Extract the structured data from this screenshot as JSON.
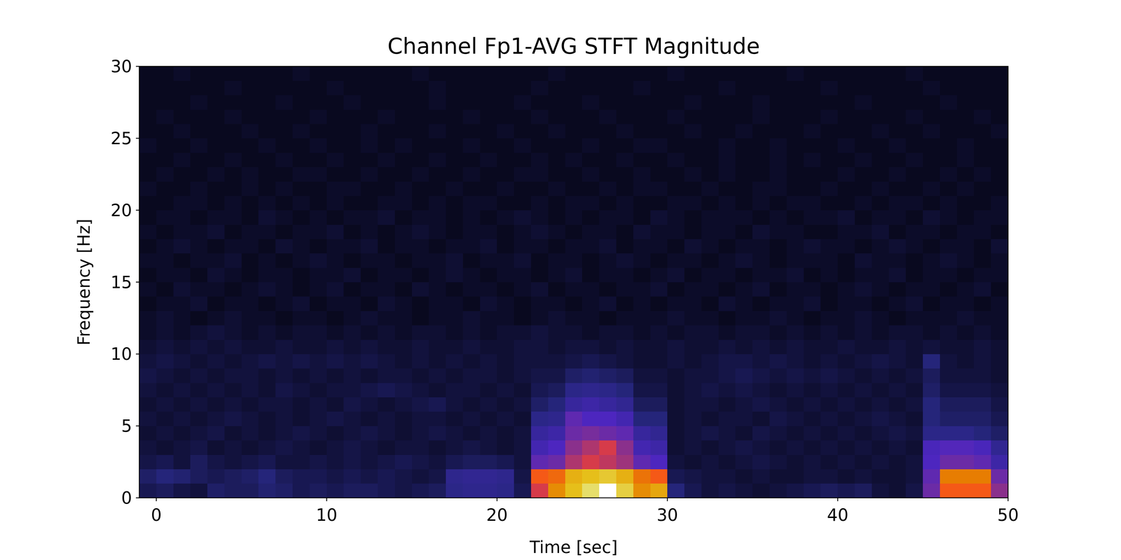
{
  "chart_data": {
    "type": "heatmap",
    "title": "Channel Fp1-AVG STFT Magnitude",
    "x_label": "Time [sec]",
    "y_label": "Frequency [Hz]",
    "xlim": [
      -1,
      50
    ],
    "ylim": [
      0,
      30
    ],
    "xticks": [
      0,
      10,
      20,
      30,
      40,
      50
    ],
    "yticks": [
      0,
      5,
      10,
      15,
      20,
      25,
      30
    ],
    "zlim": [
      0,
      100
    ],
    "x_edges": [
      -1,
      0,
      1,
      2,
      3,
      4,
      5,
      6,
      7,
      8,
      9,
      10,
      11,
      12,
      13,
      14,
      15,
      16,
      17,
      18,
      19,
      20,
      21,
      22,
      23,
      24,
      25,
      26,
      27,
      28,
      29,
      30,
      31,
      32,
      33,
      34,
      35,
      36,
      37,
      38,
      39,
      40,
      41,
      42,
      43,
      44,
      45,
      46,
      47,
      48,
      49,
      50
    ],
    "y_edges": [
      0,
      1,
      2,
      3,
      4,
      5,
      6,
      7,
      8,
      9,
      10,
      11,
      12,
      13,
      14,
      15,
      16,
      17,
      18,
      19,
      20,
      21,
      22,
      23,
      24,
      25,
      26,
      27,
      28,
      29,
      30
    ],
    "cells": [
      [
        8,
        9,
        7,
        6,
        10,
        9,
        9,
        11,
        10,
        8,
        9,
        8,
        9,
        9,
        8,
        7,
        8,
        9,
        14,
        15,
        15,
        14,
        8,
        45,
        65,
        75,
        85,
        100,
        80,
        65,
        70,
        12,
        8,
        6,
        7,
        6,
        5,
        6,
        7,
        8,
        9,
        8,
        9,
        6,
        5,
        7,
        30,
        55,
        55,
        55,
        35
      ],
      [
        10,
        12,
        11,
        9,
        8,
        9,
        10,
        12,
        9,
        8,
        8,
        7,
        8,
        7,
        8,
        7,
        6,
        7,
        15,
        16,
        16,
        15,
        7,
        55,
        58,
        72,
        75,
        78,
        72,
        60,
        55,
        8,
        7,
        6,
        6,
        5,
        6,
        5,
        5,
        6,
        6,
        5,
        6,
        5,
        5,
        6,
        28,
        62,
        62,
        62,
        30
      ],
      [
        7,
        8,
        6,
        9,
        7,
        6,
        7,
        8,
        6,
        6,
        7,
        6,
        7,
        6,
        7,
        8,
        7,
        6,
        8,
        9,
        9,
        8,
        6,
        28,
        30,
        40,
        45,
        42,
        38,
        28,
        25,
        6,
        5,
        6,
        5,
        6,
        7,
        6,
        5,
        6,
        5,
        6,
        5,
        6,
        5,
        6,
        25,
        30,
        30,
        28,
        20
      ],
      [
        6,
        5,
        6,
        7,
        5,
        6,
        5,
        6,
        7,
        6,
        5,
        6,
        7,
        6,
        5,
        6,
        6,
        5,
        6,
        7,
        6,
        5,
        6,
        22,
        25,
        35,
        40,
        45,
        35,
        22,
        20,
        5,
        6,
        5,
        6,
        7,
        6,
        5,
        6,
        5,
        6,
        5,
        6,
        5,
        6,
        5,
        24,
        26,
        26,
        24,
        16
      ],
      [
        5,
        6,
        5,
        6,
        7,
        5,
        6,
        5,
        6,
        7,
        6,
        5,
        6,
        7,
        6,
        5,
        6,
        7,
        6,
        5,
        6,
        5,
        6,
        18,
        20,
        30,
        32,
        30,
        28,
        18,
        16,
        5,
        6,
        7,
        6,
        5,
        7,
        6,
        5,
        6,
        5,
        6,
        5,
        6,
        7,
        6,
        14,
        14,
        14,
        12,
        10
      ],
      [
        6,
        5,
        6,
        5,
        6,
        7,
        6,
        5,
        6,
        5,
        6,
        7,
        6,
        5,
        6,
        5,
        6,
        6,
        5,
        6,
        5,
        6,
        5,
        14,
        15,
        28,
        25,
        25,
        22,
        12,
        12,
        5,
        6,
        5,
        6,
        6,
        5,
        7,
        6,
        5,
        6,
        5,
        6,
        7,
        6,
        5,
        12,
        10,
        10,
        10,
        8
      ],
      [
        5,
        6,
        5,
        6,
        5,
        6,
        5,
        6,
        6,
        5,
        6,
        5,
        7,
        6,
        5,
        6,
        7,
        8,
        6,
        5,
        6,
        5,
        6,
        10,
        12,
        18,
        20,
        18,
        16,
        9,
        9,
        5,
        6,
        6,
        5,
        6,
        7,
        6,
        5,
        6,
        5,
        6,
        5,
        6,
        5,
        6,
        12,
        9,
        9,
        9,
        7
      ],
      [
        6,
        5,
        6,
        5,
        6,
        5,
        6,
        5,
        7,
        6,
        5,
        6,
        6,
        7,
        8,
        7,
        6,
        5,
        6,
        6,
        5,
        6,
        5,
        8,
        9,
        14,
        15,
        14,
        12,
        7,
        7,
        5,
        6,
        7,
        6,
        7,
        6,
        5,
        6,
        5,
        6,
        5,
        6,
        5,
        6,
        5,
        10,
        7,
        7,
        7,
        6
      ],
      [
        7,
        6,
        5,
        6,
        5,
        6,
        6,
        5,
        6,
        5,
        6,
        5,
        6,
        5,
        6,
        6,
        5,
        6,
        5,
        6,
        6,
        5,
        6,
        7,
        7,
        10,
        11,
        10,
        9,
        6,
        6,
        5,
        6,
        6,
        7,
        8,
        7,
        6,
        7,
        6,
        7,
        6,
        5,
        6,
        5,
        6,
        9,
        6,
        6,
        6,
        5
      ],
      [
        6,
        7,
        6,
        5,
        6,
        5,
        6,
        7,
        6,
        7,
        6,
        7,
        6,
        7,
        6,
        5,
        6,
        5,
        6,
        5,
        6,
        5,
        6,
        6,
        6,
        7,
        8,
        7,
        6,
        5,
        5,
        6,
        5,
        6,
        7,
        7,
        6,
        7,
        6,
        5,
        6,
        5,
        6,
        7,
        6,
        5,
        12,
        6,
        5,
        6,
        5
      ],
      [
        5,
        6,
        5,
        6,
        5,
        6,
        5,
        5,
        6,
        5,
        5,
        6,
        5,
        6,
        5,
        5,
        6,
        5,
        5,
        6,
        5,
        5,
        6,
        6,
        5,
        6,
        6,
        5,
        6,
        5,
        5,
        6,
        5,
        5,
        6,
        5,
        6,
        5,
        6,
        5,
        5,
        6,
        5,
        5,
        6,
        5,
        6,
        5,
        5,
        6,
        5
      ],
      [
        4,
        5,
        4,
        5,
        6,
        5,
        4,
        5,
        4,
        5,
        5,
        4,
        5,
        4,
        5,
        4,
        5,
        5,
        4,
        5,
        4,
        5,
        5,
        6,
        5,
        5,
        4,
        5,
        5,
        4,
        5,
        4,
        5,
        5,
        4,
        5,
        5,
        4,
        5,
        4,
        5,
        4,
        5,
        4,
        5,
        5,
        4,
        5,
        4,
        5,
        4
      ],
      [
        4,
        5,
        4,
        3,
        4,
        5,
        4,
        4,
        3,
        4,
        4,
        3,
        4,
        5,
        4,
        4,
        3,
        4,
        4,
        5,
        4,
        4,
        3,
        4,
        5,
        4,
        4,
        3,
        4,
        4,
        4,
        5,
        4,
        4,
        3,
        4,
        4,
        5,
        4,
        3,
        4,
        4,
        5,
        4,
        3,
        4,
        4,
        4,
        5,
        4,
        4
      ],
      [
        3,
        4,
        4,
        5,
        3,
        4,
        4,
        3,
        4,
        5,
        3,
        4,
        4,
        3,
        5,
        4,
        3,
        4,
        4,
        3,
        5,
        4,
        3,
        4,
        4,
        3,
        4,
        5,
        3,
        4,
        3,
        4,
        4,
        3,
        5,
        4,
        3,
        4,
        4,
        5,
        3,
        4,
        4,
        3,
        4,
        5,
        3,
        4,
        4,
        3,
        4
      ],
      [
        4,
        3,
        5,
        4,
        4,
        3,
        4,
        5,
        4,
        3,
        4,
        5,
        3,
        4,
        4,
        3,
        5,
        4,
        3,
        4,
        4,
        3,
        4,
        5,
        3,
        4,
        4,
        3,
        4,
        4,
        5,
        3,
        4,
        4,
        3,
        4,
        5,
        3,
        4,
        4,
        3,
        4,
        5,
        4,
        3,
        4,
        4,
        3,
        4,
        5,
        3
      ],
      [
        3,
        4,
        4,
        3,
        5,
        4,
        3,
        4,
        4,
        3,
        4,
        4,
        5,
        3,
        4,
        4,
        3,
        4,
        5,
        4,
        3,
        4,
        4,
        3,
        4,
        5,
        3,
        4,
        4,
        3,
        4,
        5,
        3,
        4,
        4,
        3,
        4,
        4,
        5,
        3,
        4,
        3,
        4,
        4,
        5,
        3,
        4,
        4,
        3,
        4,
        4
      ],
      [
        4,
        4,
        3,
        4,
        4,
        5,
        3,
        4,
        3,
        4,
        5,
        4,
        3,
        4,
        4,
        3,
        4,
        4,
        5,
        3,
        4,
        4,
        5,
        3,
        4,
        4,
        3,
        4,
        5,
        4,
        3,
        4,
        4,
        3,
        4,
        5,
        4,
        3,
        4,
        4,
        4,
        3,
        5,
        4,
        4,
        3,
        4,
        5,
        4,
        3,
        4
      ],
      [
        3,
        4,
        5,
        4,
        3,
        4,
        4,
        3,
        5,
        4,
        3,
        4,
        4,
        5,
        3,
        4,
        4,
        3,
        4,
        4,
        5,
        3,
        4,
        4,
        3,
        4,
        4,
        5,
        3,
        4,
        4,
        3,
        5,
        4,
        3,
        4,
        4,
        3,
        4,
        5,
        4,
        4,
        3,
        4,
        5,
        4,
        3,
        4,
        4,
        3,
        5
      ],
      [
        4,
        3,
        4,
        4,
        5,
        3,
        4,
        4,
        3,
        4,
        4,
        5,
        3,
        4,
        3,
        4,
        5,
        4,
        3,
        4,
        4,
        3,
        4,
        5,
        4,
        3,
        4,
        4,
        3,
        5,
        4,
        4,
        3,
        4,
        4,
        3,
        5,
        4,
        4,
        3,
        3,
        4,
        4,
        5,
        3,
        4,
        4,
        3,
        4,
        4,
        3
      ],
      [
        3,
        4,
        4,
        3,
        4,
        4,
        3,
        5,
        4,
        3,
        4,
        3,
        4,
        4,
        5,
        3,
        4,
        4,
        3,
        4,
        3,
        4,
        5,
        4,
        3,
        4,
        3,
        4,
        4,
        3,
        5,
        4,
        3,
        4,
        4,
        4,
        3,
        4,
        3,
        4,
        4,
        5,
        3,
        4,
        4,
        3,
        5,
        4,
        3,
        4,
        4
      ],
      [
        3,
        3,
        4,
        4,
        3,
        4,
        3,
        4,
        3,
        4,
        3,
        4,
        3,
        3,
        4,
        4,
        3,
        4,
        3,
        4,
        4,
        3,
        3,
        4,
        3,
        4,
        4,
        3,
        4,
        3,
        3,
        4,
        4,
        3,
        4,
        3,
        4,
        3,
        4,
        4,
        3,
        3,
        4,
        3,
        4,
        4,
        3,
        4,
        3,
        3,
        4
      ],
      [
        4,
        3,
        3,
        4,
        3,
        3,
        4,
        3,
        4,
        3,
        3,
        4,
        4,
        3,
        3,
        4,
        3,
        3,
        4,
        3,
        3,
        4,
        3,
        3,
        4,
        3,
        3,
        4,
        3,
        4,
        4,
        3,
        3,
        4,
        3,
        3,
        4,
        4,
        3,
        3,
        4,
        3,
        3,
        4,
        3,
        3,
        4,
        3,
        4,
        3,
        3
      ],
      [
        3,
        4,
        3,
        3,
        4,
        3,
        4,
        3,
        3,
        4,
        4,
        3,
        3,
        4,
        3,
        3,
        4,
        3,
        3,
        4,
        3,
        3,
        4,
        4,
        3,
        3,
        4,
        3,
        3,
        4,
        3,
        3,
        4,
        3,
        4,
        3,
        3,
        4,
        3,
        3,
        3,
        4,
        3,
        3,
        4,
        3,
        3,
        4,
        3,
        4,
        3
      ],
      [
        3,
        3,
        4,
        3,
        3,
        4,
        3,
        3,
        4,
        3,
        3,
        4,
        3,
        3,
        4,
        3,
        3,
        4,
        3,
        3,
        4,
        3,
        3,
        4,
        3,
        4,
        3,
        3,
        4,
        3,
        3,
        4,
        3,
        3,
        4,
        3,
        3,
        4,
        3,
        4,
        3,
        3,
        4,
        3,
        3,
        4,
        3,
        3,
        4,
        3,
        3
      ],
      [
        4,
        3,
        3,
        4,
        3,
        3,
        3,
        4,
        3,
        3,
        4,
        3,
        3,
        4,
        3,
        4,
        3,
        3,
        3,
        4,
        3,
        3,
        4,
        3,
        3,
        3,
        4,
        3,
        3,
        4,
        4,
        3,
        3,
        3,
        4,
        3,
        3,
        4,
        3,
        3,
        3,
        4,
        3,
        3,
        4,
        3,
        3,
        3,
        4,
        3,
        3
      ],
      [
        3,
        3,
        4,
        3,
        3,
        3,
        4,
        3,
        3,
        4,
        3,
        3,
        3,
        4,
        3,
        3,
        3,
        4,
        3,
        3,
        3,
        4,
        3,
        3,
        4,
        3,
        3,
        3,
        4,
        3,
        3,
        3,
        4,
        3,
        3,
        4,
        3,
        3,
        3,
        4,
        3,
        3,
        3,
        4,
        3,
        3,
        4,
        3,
        3,
        3,
        4
      ],
      [
        3,
        4,
        3,
        3,
        3,
        4,
        3,
        3,
        3,
        3,
        4,
        3,
        3,
        3,
        4,
        3,
        3,
        3,
        3,
        4,
        3,
        3,
        3,
        4,
        3,
        3,
        3,
        4,
        3,
        3,
        3,
        4,
        3,
        3,
        3,
        3,
        4,
        3,
        3,
        3,
        4,
        3,
        3,
        3,
        3,
        4,
        3,
        3,
        3,
        4,
        3
      ],
      [
        3,
        3,
        3,
        4,
        3,
        3,
        3,
        3,
        4,
        3,
        3,
        3,
        4,
        3,
        3,
        3,
        3,
        4,
        3,
        3,
        3,
        3,
        4,
        3,
        3,
        3,
        4,
        3,
        3,
        3,
        3,
        3,
        4,
        3,
        3,
        3,
        4,
        3,
        3,
        3,
        3,
        3,
        4,
        3,
        3,
        3,
        3,
        4,
        3,
        3,
        3
      ],
      [
        3,
        3,
        3,
        3,
        3,
        4,
        3,
        3,
        3,
        3,
        3,
        4,
        3,
        3,
        3,
        3,
        3,
        4,
        3,
        3,
        3,
        3,
        3,
        4,
        3,
        3,
        3,
        3,
        3,
        4,
        3,
        3,
        3,
        3,
        4,
        3,
        3,
        3,
        3,
        3,
        4,
        3,
        3,
        3,
        3,
        3,
        4,
        3,
        3,
        3,
        3
      ],
      [
        3,
        3,
        4,
        3,
        3,
        3,
        3,
        3,
        3,
        4,
        3,
        3,
        3,
        3,
        3,
        3,
        4,
        3,
        3,
        3,
        3,
        3,
        3,
        3,
        4,
        3,
        3,
        3,
        3,
        3,
        3,
        4,
        3,
        3,
        3,
        3,
        3,
        3,
        4,
        3,
        3,
        3,
        3,
        3,
        3,
        4,
        3,
        3,
        3,
        3,
        3
      ]
    ]
  }
}
